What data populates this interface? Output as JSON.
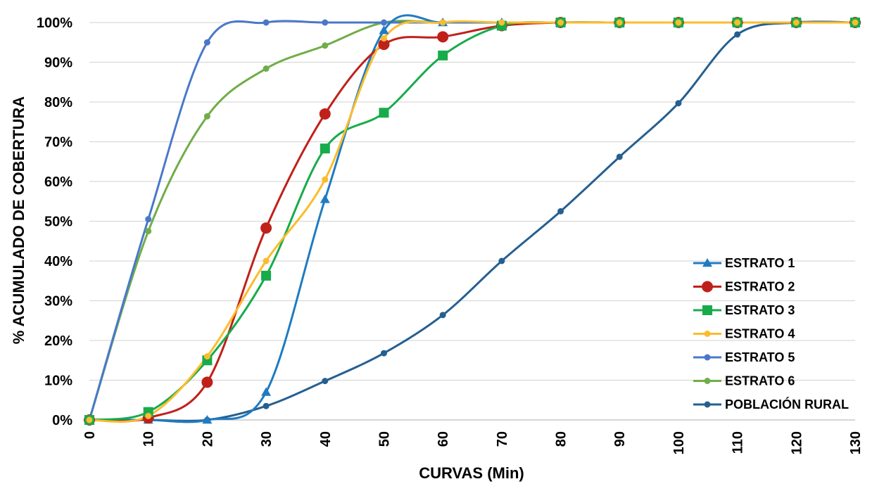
{
  "chart_data": {
    "type": "line",
    "xlabel": "CURVAS (Min)",
    "ylabel": "% ACUMULADO  DE COBERTURA",
    "x_ticks": [
      0,
      10,
      20,
      30,
      40,
      50,
      60,
      70,
      80,
      90,
      100,
      110,
      120,
      130
    ],
    "y_ticks": [
      "0%",
      "10%",
      "20%",
      "30%",
      "40%",
      "50%",
      "60%",
      "70%",
      "80%",
      "90%",
      "100%"
    ],
    "xlim": [
      0,
      130
    ],
    "ylim": [
      0,
      100
    ],
    "grid": "horizontal",
    "legend_position": "bottom-right",
    "series": [
      {
        "name": "ESTRATO 1",
        "color": "#1f7bc1",
        "marker": "triangle",
        "x": [
          0,
          10,
          20,
          30,
          40,
          50,
          60,
          70,
          80,
          90,
          100,
          110,
          120,
          130
        ],
        "values": [
          0,
          0,
          0,
          7,
          55.5,
          98,
          100,
          100,
          100,
          100,
          100,
          100,
          100,
          100
        ]
      },
      {
        "name": "ESTRATO 2",
        "color": "#c0201a",
        "marker": "circle",
        "x": [
          0,
          10,
          20,
          30,
          40,
          50,
          60,
          70,
          80,
          90,
          100,
          110,
          120,
          130
        ],
        "values": [
          0,
          0.5,
          9.5,
          48.3,
          77,
          94.5,
          96.4,
          99.2,
          100,
          100,
          100,
          100,
          100,
          100
        ]
      },
      {
        "name": "ESTRATO 3",
        "color": "#18ab4b",
        "marker": "square",
        "x": [
          0,
          10,
          20,
          30,
          40,
          50,
          60,
          70,
          80,
          90,
          100,
          110,
          120,
          130
        ],
        "values": [
          0,
          2,
          15,
          36.3,
          68.3,
          77.3,
          91.7,
          99.2,
          100,
          100,
          100,
          100,
          100,
          100
        ]
      },
      {
        "name": "ESTRATO 4",
        "color": "#fbbc2c",
        "marker": "circle",
        "x": [
          0,
          10,
          20,
          30,
          40,
          50,
          60,
          70,
          80,
          90,
          100,
          110,
          120,
          130
        ],
        "values": [
          0,
          1,
          16,
          40,
          60.5,
          96,
          100,
          100,
          100,
          100,
          100,
          100,
          100,
          100
        ]
      },
      {
        "name": "ESTRATO 5",
        "color": "#4a78c9",
        "marker": "circle",
        "x": [
          0,
          10,
          20,
          30,
          40,
          50,
          60,
          70,
          80,
          90,
          100,
          110,
          120,
          130
        ],
        "values": [
          0,
          50.5,
          95,
          100,
          100,
          100,
          100,
          100,
          100,
          100,
          100,
          100,
          100,
          100
        ]
      },
      {
        "name": "ESTRATO 6",
        "color": "#71ad47",
        "marker": "circle",
        "x": [
          0,
          10,
          20,
          30,
          40,
          50,
          60,
          70,
          80,
          90,
          100,
          110,
          120,
          130
        ],
        "values": [
          0,
          47.5,
          76.4,
          88.4,
          94.2,
          100,
          100,
          100,
          100,
          100,
          100,
          100,
          100,
          100
        ]
      },
      {
        "name": "POBLACIÓN RURAL",
        "color": "#255f91",
        "marker": "circle",
        "x": [
          0,
          10,
          20,
          30,
          40,
          50,
          60,
          70,
          80,
          90,
          100,
          110,
          120,
          130
        ],
        "values": [
          0,
          0,
          0,
          3.5,
          9.8,
          16.8,
          26.4,
          40,
          52.5,
          66.2,
          79.7,
          97,
          100,
          100
        ]
      }
    ]
  }
}
